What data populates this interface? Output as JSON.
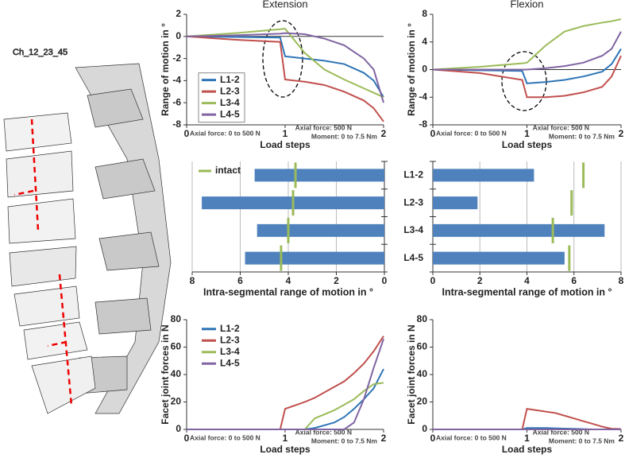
{
  "model": {
    "label": "Ch_12_23_45"
  },
  "chart_data": [
    {
      "type": "line",
      "title": "Extension",
      "x_label": "Load steps",
      "y_label": "Range of motion in °",
      "x": [
        0,
        0.5,
        0.95,
        1,
        1.2,
        1.4,
        1.6,
        1.8,
        1.9,
        2
      ],
      "xlim": [
        0,
        2
      ],
      "xticks": [
        0,
        1,
        2
      ],
      "ylim": [
        -8,
        2
      ],
      "yticks": [
        -8,
        -6,
        -4,
        -2,
        0,
        2
      ],
      "legend": "left",
      "annotations": [
        "Axial force: 0 to 500 N",
        "Axial force: 500 N",
        "Moment: 0 to 7.5 Nm"
      ],
      "series": [
        {
          "name": "L1-2",
          "color": "#2e75b6",
          "values": [
            0,
            -0.05,
            -0.1,
            -1.8,
            -2,
            -2.2,
            -2.5,
            -3.3,
            -4,
            -5.5
          ]
        },
        {
          "name": "L2-3",
          "color": "#c0504d",
          "values": [
            0,
            -0.3,
            -0.5,
            -3.9,
            -4.1,
            -4.4,
            -5,
            -5.8,
            -6.5,
            -7.7
          ]
        },
        {
          "name": "L3-4",
          "color": "#9bbb59",
          "values": [
            0,
            0.3,
            0.65,
            0.7,
            -1.5,
            -3,
            -3.9,
            -4.7,
            -5.1,
            -5.5
          ]
        },
        {
          "name": "L4-5",
          "color": "#8064a2",
          "values": [
            0,
            0.1,
            0.25,
            0.3,
            0.2,
            -0.2,
            -0.8,
            -2,
            -3,
            -6
          ]
        }
      ]
    },
    {
      "type": "line",
      "title": "Flexion",
      "x_label": "Load steps",
      "y_label": "Range of motion in °",
      "x": [
        0,
        0.5,
        0.95,
        1,
        1.2,
        1.4,
        1.6,
        1.8,
        1.9,
        2
      ],
      "xlim": [
        0,
        2
      ],
      "xticks": [
        0,
        1,
        2
      ],
      "ylim": [
        -8,
        8
      ],
      "yticks": [
        -8,
        -4,
        0,
        4,
        8
      ],
      "legend": false,
      "annotations": [
        "Axial force: 0 to 500 N",
        "Axial force: 500 N",
        "Moment: 0 to 7.5 Nm"
      ],
      "series": [
        {
          "name": "L1-2",
          "color": "#2e75b6",
          "values": [
            0,
            -0.1,
            -0.2,
            -2,
            -1.8,
            -1.5,
            -1,
            -0.3,
            0.8,
            3
          ]
        },
        {
          "name": "L2-3",
          "color": "#c0504d",
          "values": [
            0,
            -0.5,
            -1.5,
            -4,
            -4,
            -3.8,
            -3.3,
            -2.5,
            -1,
            2
          ]
        },
        {
          "name": "L3-4",
          "color": "#9bbb59",
          "values": [
            0,
            0.4,
            0.9,
            1,
            3.5,
            5.5,
            6.3,
            6.8,
            7,
            7.3
          ]
        },
        {
          "name": "L4-5",
          "color": "#8064a2",
          "values": [
            0,
            0,
            0,
            0,
            0.2,
            0.5,
            1,
            2,
            3,
            5.5
          ]
        }
      ]
    },
    {
      "type": "bar",
      "orientation": "horizontal",
      "x_label": "Intra-segmental range of motion in °",
      "xlim": [
        8,
        0
      ],
      "xticks": [
        8,
        6,
        4,
        2,
        0
      ],
      "grid": true,
      "legend": "top-left",
      "series": [
        {
          "color": "#4f81bd",
          "values": [
            5.4,
            7.6,
            5.3,
            5.8
          ]
        },
        {
          "name": "intact",
          "color": "#9bbb59",
          "style": "marker",
          "values": [
            3.7,
            3.8,
            4.0,
            4.3
          ]
        }
      ]
    },
    {
      "type": "bar",
      "orientation": "horizontal",
      "x_label": "Intra-segmental range of motion in °",
      "categories": [
        "L1-2",
        "L2-3",
        "L3-4",
        "L4-5"
      ],
      "xlim": [
        0,
        8
      ],
      "xticks": [
        0,
        2,
        4,
        6,
        8
      ],
      "grid": true,
      "legend": false,
      "series": [
        {
          "color": "#4f81bd",
          "values": [
            4.3,
            1.9,
            7.3,
            5.6
          ]
        },
        {
          "name": "intact",
          "color": "#9bbb59",
          "style": "marker",
          "values": [
            6.4,
            5.9,
            5.1,
            5.8
          ]
        }
      ]
    },
    {
      "type": "line",
      "x_label": "Load steps",
      "y_label": "Facet joint forces in N",
      "x": [
        0,
        0.95,
        1,
        1.2,
        1.3,
        1.4,
        1.5,
        1.6,
        1.7,
        1.8,
        1.9,
        2
      ],
      "xlim": [
        0,
        2
      ],
      "xticks": [
        0,
        1,
        2
      ],
      "ylim": [
        0,
        80
      ],
      "yticks": [
        0,
        20,
        40,
        60,
        80
      ],
      "legend": "left",
      "annotations": [
        "Axial force: 0 to 500 N",
        "Axial force: 500 N",
        "Moment: 0 to 7.5 Nm"
      ],
      "series": [
        {
          "name": "L1-2",
          "color": "#2e75b6",
          "values": [
            0,
            0,
            0,
            0,
            1,
            3,
            5,
            9,
            15,
            22,
            30,
            44
          ]
        },
        {
          "name": "L2-3",
          "color": "#c0504d",
          "values": [
            0,
            0,
            15,
            20,
            23,
            27,
            31,
            35,
            41,
            48,
            57,
            68
          ]
        },
        {
          "name": "L3-4",
          "color": "#9bbb59",
          "values": [
            0,
            0,
            0,
            0,
            8,
            11,
            14,
            18,
            22,
            28,
            33,
            34
          ]
        },
        {
          "name": "L4-5",
          "color": "#8064a2",
          "values": [
            0,
            0,
            0,
            0,
            0,
            0,
            0,
            0,
            5,
            22,
            45,
            66
          ]
        }
      ]
    },
    {
      "type": "line",
      "x_label": "Load steps",
      "y_label": "Facet joint forces in N",
      "x": [
        0,
        0.95,
        1,
        1.2,
        1.3,
        1.4,
        1.5,
        1.6,
        1.7,
        1.8,
        1.9,
        2
      ],
      "xlim": [
        0,
        2
      ],
      "xticks": [
        0,
        1,
        2
      ],
      "ylim": [
        0,
        80
      ],
      "yticks": [
        0,
        20,
        40,
        60,
        80
      ],
      "legend": false,
      "annotations": [
        "Axial force: 0 to 500 N",
        "Axial force: 500 N",
        "Moment: 0 to 7.5 Nm"
      ],
      "series": [
        {
          "name": "L1-2",
          "color": "#2e75b6",
          "values": [
            0,
            0,
            1,
            1,
            0.8,
            0.6,
            0.4,
            0.2,
            0,
            0,
            0,
            0
          ]
        },
        {
          "name": "L2-3",
          "color": "#c0504d",
          "values": [
            0,
            0,
            15,
            13,
            12,
            10,
            8,
            6,
            4,
            2,
            0.5,
            0.3
          ]
        },
        {
          "name": "L3-4",
          "color": "#9bbb59",
          "values": [
            0,
            0,
            0,
            0,
            0,
            0,
            0,
            0,
            0,
            0,
            0,
            0
          ]
        },
        {
          "name": "L4-5",
          "color": "#8064a2",
          "values": [
            0,
            0,
            0,
            0,
            0,
            0,
            0,
            0,
            0,
            0,
            0,
            0
          ]
        }
      ]
    }
  ]
}
